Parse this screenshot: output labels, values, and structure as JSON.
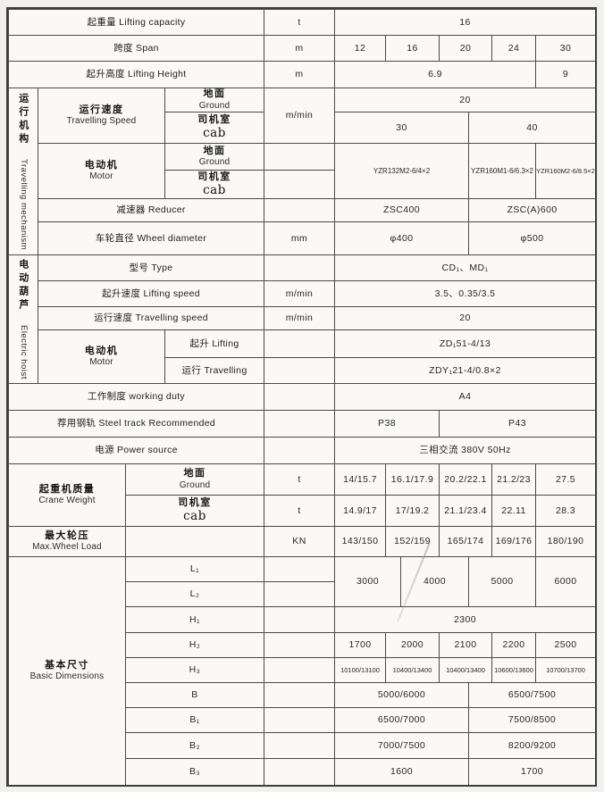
{
  "colors": {
    "line": "#4a4a4a",
    "paper": "#faf9f6",
    "page": "#f1f0ec",
    "text": "#2e2e2e"
  },
  "rows": {
    "lifting_capacity": {
      "label": "起重量 Lifting capacity",
      "unit": "t",
      "value": "16"
    },
    "span": {
      "label": "跨度 Span",
      "unit": "m",
      "values": [
        "12",
        "16",
        "20",
        "24",
        "30"
      ]
    },
    "lifting_height": {
      "label": "起升高度 Lifting Height",
      "unit": "m",
      "value": "6.9",
      "value_30": "9"
    },
    "travelling_mechanism": {
      "group_cn": "运行机构",
      "group_en": "Travelling mechanism",
      "speed": {
        "cn": "运行速度",
        "en": "Travelling Speed",
        "unit": "m/min",
        "ground_cn": "地面",
        "ground_en": "Ground",
        "ground_value": "20",
        "cab_cn": "司机室",
        "cab_en": "cab",
        "cab_value_left": "30",
        "cab_value_right": "40"
      },
      "motor": {
        "cn": "电动机",
        "en": "Motor",
        "ground_cn": "地面",
        "ground_en": "Ground",
        "cab_cn": "司机室",
        "cab_en": "cab",
        "value_1": "YZR132M2-6/4×2",
        "value_2": "YZR160M1-6/6.3×2",
        "value_3": "YZR160M2-6/8.5×2"
      },
      "reducer": {
        "label": "减速器 Reducer",
        "value_left": "ZSC400",
        "value_right": "ZSC(A)600"
      },
      "wheel_diameter": {
        "label": "车轮直径 Wheel diameter",
        "unit": "mm",
        "value_left": "φ400",
        "value_right": "φ500"
      }
    },
    "electric_hoist": {
      "group_cn": "电动葫芦",
      "group_en": "Electric hoist",
      "type": {
        "label": "型号 Type",
        "value": "CD₁、MD₁"
      },
      "lifting_speed": {
        "label": "起升速度 Lifting speed",
        "unit": "m/min",
        "value": "3.5、0.35/3.5"
      },
      "travelling_speed": {
        "label": "运行速度 Travelling speed",
        "unit": "m/min",
        "value": "20"
      },
      "motor": {
        "cn": "电动机",
        "en": "Motor",
        "lifting_label": "起升 Lifting",
        "lifting_value": "ZD₁51-4/13",
        "travelling_label": "运行 Travelling",
        "travelling_value": "ZDY₁21-4/0.8×2"
      }
    },
    "working_duty": {
      "label": "工作制度 working duty",
      "value": "A4"
    },
    "steel_track": {
      "label": "荐用钢轨 Steel track Recommended",
      "value_left": "P38",
      "value_right": "P43"
    },
    "power_source": {
      "label": "电源 Power source",
      "value": "三相交流 380V 50Hz"
    },
    "crane_weight": {
      "cn": "起重机质量",
      "en": "Crane Weight",
      "ground_cn": "地面",
      "ground_en": "Ground",
      "ground_unit": "t",
      "ground_values": [
        "14/15.7",
        "16.1/17.9",
        "20.2/22.1",
        "21.2/23",
        "27.5"
      ],
      "cab_cn": "司机室",
      "cab_en": "cab",
      "cab_unit": "t",
      "cab_values": [
        "14.9/17",
        "17/19.2",
        "21.1/23.4",
        "22.11",
        "28.3"
      ]
    },
    "max_wheel_load": {
      "cn": "最大轮压",
      "en": "Max.Wheel Load",
      "unit": "KN",
      "values": [
        "143/150",
        "152/159",
        "165/174",
        "169/176",
        "180/190"
      ]
    },
    "basic_dimensions": {
      "cn": "基本尺寸",
      "en": "Basic Dimensions",
      "l1_label": "L₁",
      "l2_label": "L₂",
      "l_values": [
        "3000",
        "4000",
        "5000",
        "6000"
      ],
      "h1_label": "H₁",
      "h1_value": "2300",
      "h2_label": "H₂",
      "h2_values": [
        "1700",
        "2000",
        "2100",
        "2200",
        "2500"
      ],
      "h3_label": "H₃",
      "h3_values": [
        "10100/13100",
        "10400/13400",
        "10400/13400",
        "10600/13600",
        "10700/13700"
      ],
      "b_label": "B",
      "b_left": "5000/6000",
      "b_right": "6500/7500",
      "b1_label": "B₁",
      "b1_left": "6500/7000",
      "b1_right": "7500/8500",
      "b2_label": "B₂",
      "b2_left": "7000/7500",
      "b2_right": "8200/9200",
      "b3_label": "B₃",
      "b3_left": "1600",
      "b3_right": "1700"
    }
  }
}
